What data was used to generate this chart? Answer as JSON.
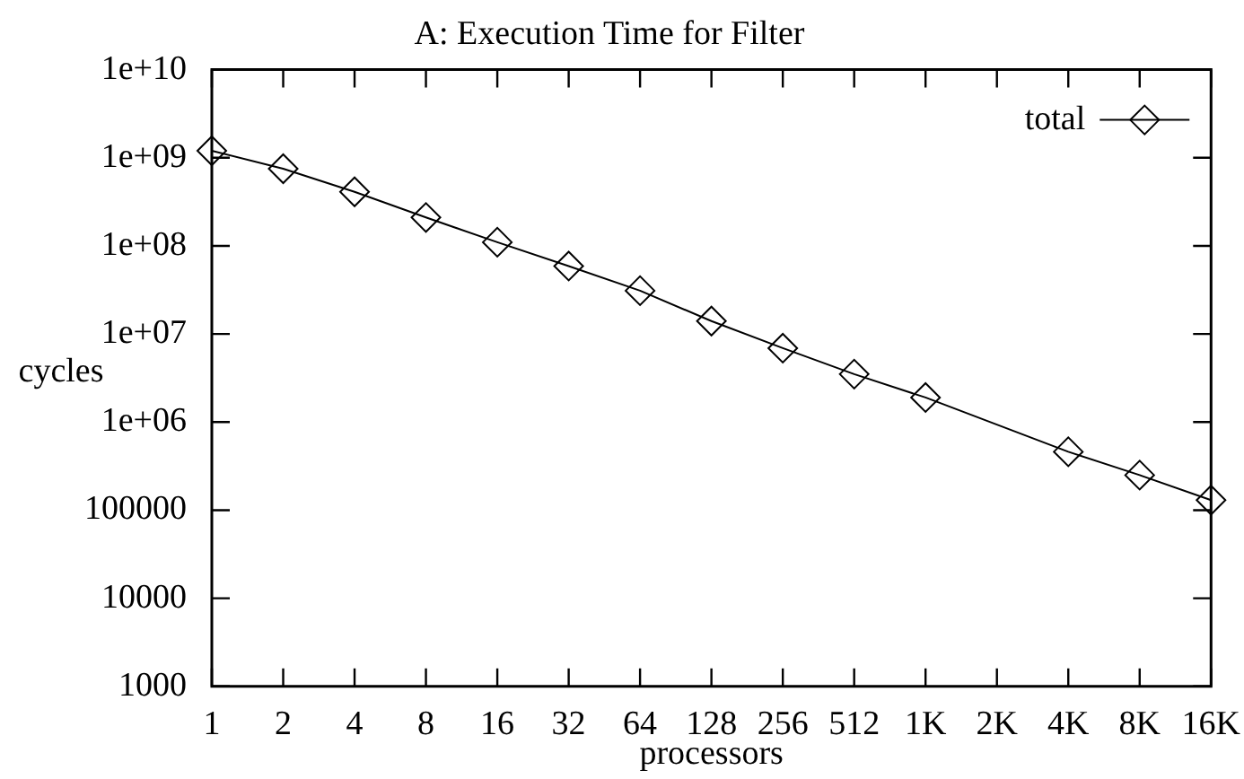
{
  "chart_data": {
    "type": "line",
    "title": "A: Execution Time for Filter",
    "xlabel": "processors",
    "ylabel": "cycles",
    "categories": [
      "1",
      "2",
      "4",
      "8",
      "16",
      "32",
      "64",
      "128",
      "256",
      "512",
      "1K",
      "2K",
      "4K",
      "8K",
      "16K"
    ],
    "series": [
      {
        "name": "total",
        "color": "#000000",
        "values": [
          1200000000,
          750000000,
          410000000,
          210000000,
          110000000,
          59000000,
          31000000,
          14000000,
          6900000,
          3500000,
          1900000,
          null,
          460000,
          250000,
          130000
        ]
      }
    ],
    "log": "y",
    "ylim": [
      1000,
      10000000000
    ],
    "yticks": [
      1000,
      10000,
      100000,
      {
        "value": 1000000,
        "label": "1e+06"
      },
      {
        "value": 10000000,
        "label": "1e+07"
      },
      {
        "value": 100000000,
        "label": "1e+08"
      },
      {
        "value": 1000000000,
        "label": "1e+09"
      },
      {
        "value": 10000000000,
        "label": "1e+10"
      }
    ],
    "grid": false,
    "legend": "top right",
    "marker": "diamond",
    "line_style": "solid"
  }
}
